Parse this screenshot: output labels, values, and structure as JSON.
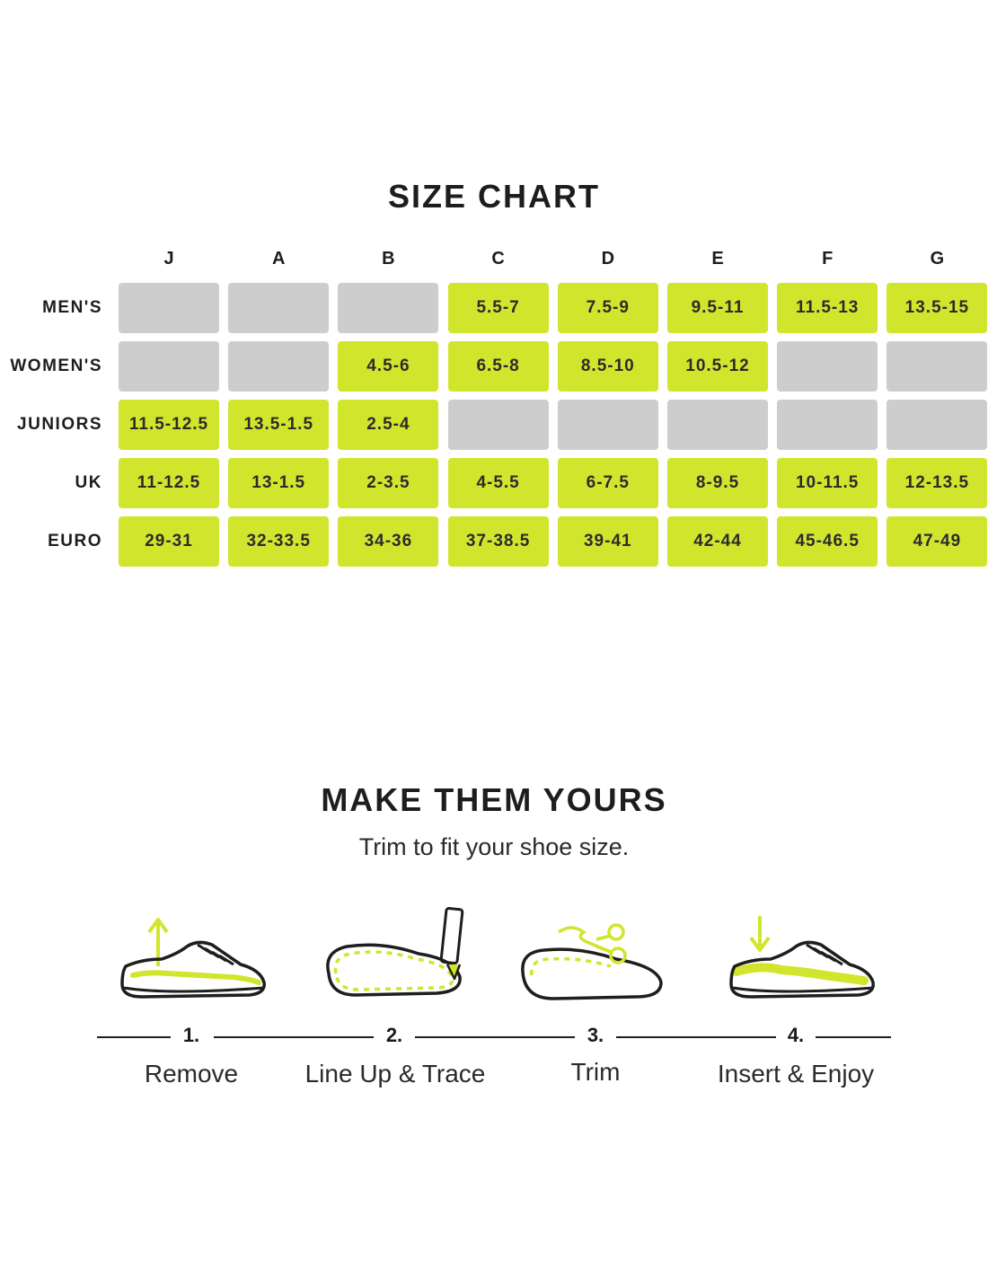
{
  "colors": {
    "accent": "#d2e52d",
    "empty": "#cdcdcd",
    "ink": "#1d1d1d"
  },
  "size_chart": {
    "title": "SIZE CHART"
  },
  "chart_data": {
    "type": "table",
    "title": "SIZE CHART",
    "columns": [
      "J",
      "A",
      "B",
      "C",
      "D",
      "E",
      "F",
      "G"
    ],
    "rows": [
      {
        "label": "MEN'S",
        "cells": [
          "",
          "",
          "",
          "5.5-7",
          "7.5-9",
          "9.5-11",
          "11.5-13",
          "13.5-15"
        ]
      },
      {
        "label": "WOMEN'S",
        "cells": [
          "",
          "",
          "4.5-6",
          "6.5-8",
          "8.5-10",
          "10.5-12",
          "",
          ""
        ]
      },
      {
        "label": "JUNIORS",
        "cells": [
          "11.5-12.5",
          "13.5-1.5",
          "2.5-4",
          "",
          "",
          "",
          "",
          ""
        ]
      },
      {
        "label": "UK",
        "cells": [
          "11-12.5",
          "13-1.5",
          "2-3.5",
          "4-5.5",
          "6-7.5",
          "8-9.5",
          "10-11.5",
          "12-13.5"
        ]
      },
      {
        "label": "EURO",
        "cells": [
          "29-31",
          "32-33.5",
          "34-36",
          "37-38.5",
          "39-41",
          "42-44",
          "45-46.5",
          "47-49"
        ]
      }
    ]
  },
  "make_them_yours": {
    "title": "MAKE THEM YOURS",
    "subtitle": "Trim to fit your shoe size.",
    "steps": [
      {
        "number": "1.",
        "label": "Remove",
        "icon": "shoe-remove-icon"
      },
      {
        "number": "2.",
        "label": "Line Up & Trace",
        "icon": "insole-trace-icon"
      },
      {
        "number": "3.",
        "label": "Trim",
        "icon": "insole-trim-icon"
      },
      {
        "number": "4.",
        "label": "Insert & Enjoy",
        "icon": "shoe-insert-icon"
      }
    ]
  }
}
